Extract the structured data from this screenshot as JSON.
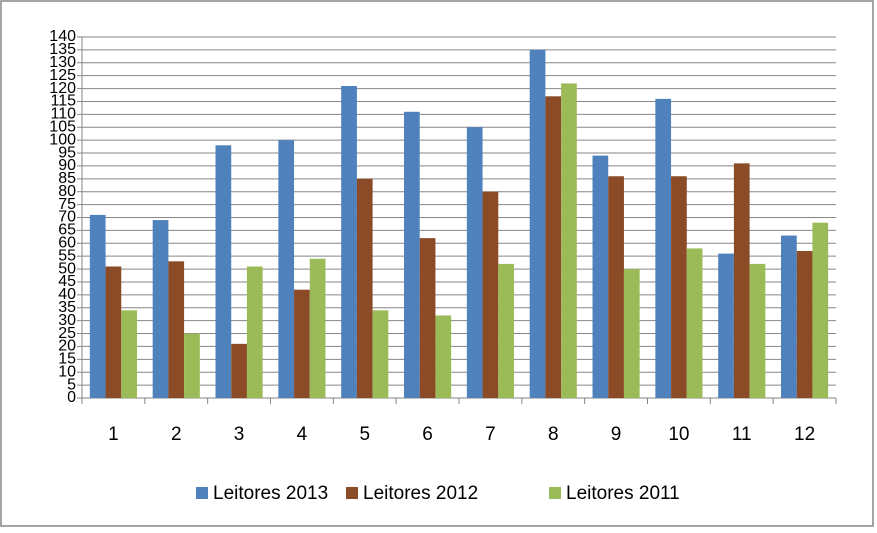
{
  "chart_data": {
    "type": "bar",
    "categories": [
      "1",
      "2",
      "3",
      "4",
      "5",
      "6",
      "7",
      "8",
      "9",
      "10",
      "11",
      "12"
    ],
    "series": [
      {
        "name": "Leitores 2013",
        "color": "#4f81bd",
        "values": [
          71,
          69,
          98,
          100,
          121,
          111,
          105,
          135,
          94,
          116,
          56,
          63
        ]
      },
      {
        "name": "Leitores 2012",
        "color": "#8a4b26",
        "values": [
          51,
          53,
          21,
          42,
          85,
          62,
          80,
          117,
          86,
          86,
          91,
          57
        ]
      },
      {
        "name": "Leitores 2011",
        "color": "#9bbb59",
        "values": [
          34,
          25,
          51,
          54,
          34,
          32,
          52,
          122,
          50,
          58,
          52,
          68
        ]
      }
    ],
    "ylim": [
      0,
      140
    ],
    "yticks": [
      0,
      5,
      10,
      15,
      20,
      25,
      30,
      35,
      40,
      45,
      50,
      55,
      60,
      65,
      70,
      75,
      80,
      85,
      90,
      95,
      100,
      105,
      110,
      115,
      120,
      125,
      130,
      135,
      140
    ],
    "grid": true,
    "legend": "bottom"
  }
}
